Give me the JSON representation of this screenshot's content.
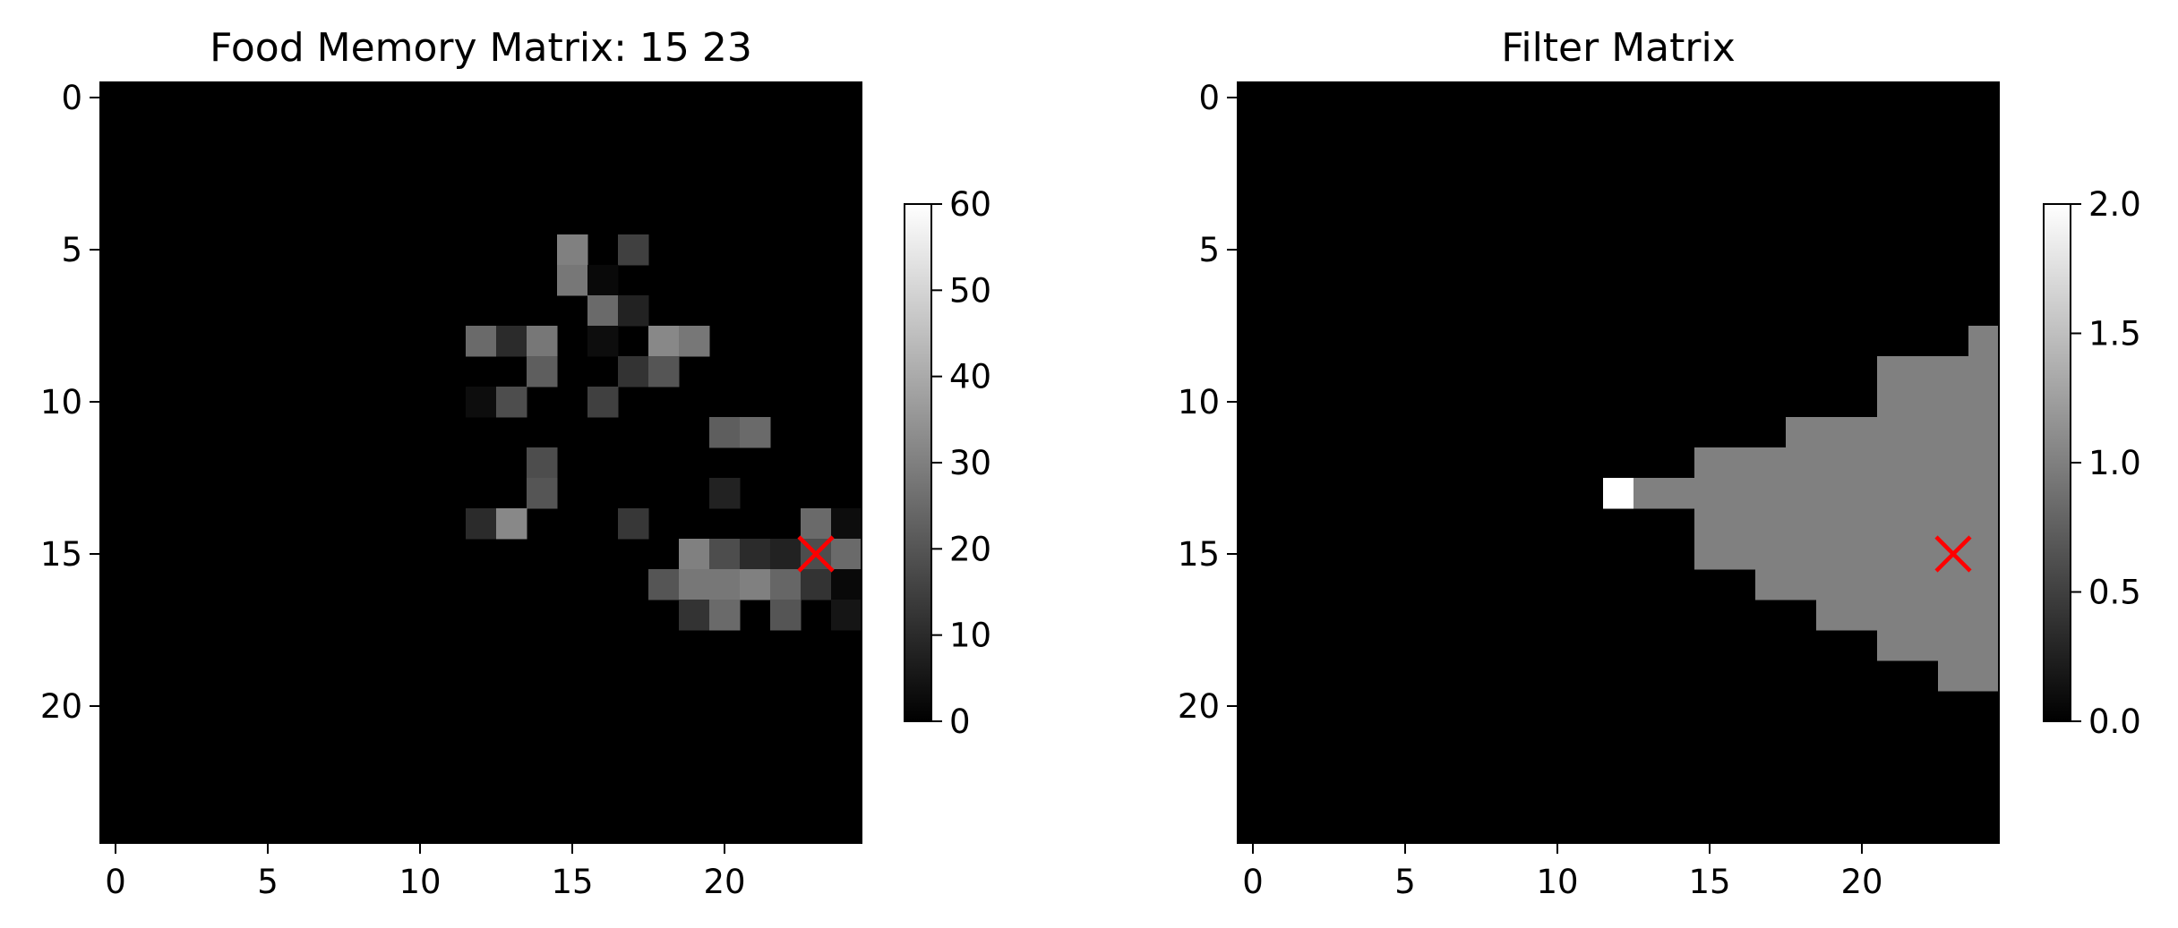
{
  "chart_data": [
    {
      "type": "heatmap",
      "title": "Food Memory Matrix: 15 23",
      "xlabel": "",
      "ylabel": "",
      "colormap": "gray",
      "shape": [
        25,
        25
      ],
      "xlim": [
        -0.5,
        24.5
      ],
      "ylim": [
        24.5,
        -0.5
      ],
      "xticks": [
        "0",
        "5",
        "10",
        "15",
        "20"
      ],
      "yticks": [
        "0",
        "5",
        "10",
        "15",
        "20"
      ],
      "colorbar": {
        "min": 0,
        "max": 60,
        "ticks": [
          "0",
          "10",
          "20",
          "30",
          "40",
          "50",
          "60"
        ]
      },
      "marker": {
        "row": 15,
        "col": 23,
        "symbol": "x",
        "color": "#ff0000"
      },
      "nonzero_cells": [
        {
          "row": 5,
          "col": 15,
          "value": 30
        },
        {
          "row": 5,
          "col": 17,
          "value": 15
        },
        {
          "row": 6,
          "col": 15,
          "value": 28
        },
        {
          "row": 6,
          "col": 16,
          "value": 2
        },
        {
          "row": 7,
          "col": 16,
          "value": 25
        },
        {
          "row": 7,
          "col": 17,
          "value": 8
        },
        {
          "row": 8,
          "col": 12,
          "value": 25
        },
        {
          "row": 8,
          "col": 13,
          "value": 10
        },
        {
          "row": 8,
          "col": 14,
          "value": 28
        },
        {
          "row": 8,
          "col": 16,
          "value": 3
        },
        {
          "row": 8,
          "col": 18,
          "value": 32
        },
        {
          "row": 8,
          "col": 19,
          "value": 28
        },
        {
          "row": 9,
          "col": 14,
          "value": 22
        },
        {
          "row": 9,
          "col": 17,
          "value": 12
        },
        {
          "row": 9,
          "col": 18,
          "value": 20
        },
        {
          "row": 10,
          "col": 12,
          "value": 3
        },
        {
          "row": 10,
          "col": 13,
          "value": 18
        },
        {
          "row": 10,
          "col": 16,
          "value": 15
        },
        {
          "row": 11,
          "col": 20,
          "value": 22
        },
        {
          "row": 11,
          "col": 21,
          "value": 25
        },
        {
          "row": 12,
          "col": 14,
          "value": 18
        },
        {
          "row": 13,
          "col": 14,
          "value": 20
        },
        {
          "row": 13,
          "col": 20,
          "value": 8
        },
        {
          "row": 14,
          "col": 12,
          "value": 10
        },
        {
          "row": 14,
          "col": 13,
          "value": 32
        },
        {
          "row": 14,
          "col": 17,
          "value": 13
        },
        {
          "row": 14,
          "col": 23,
          "value": 25
        },
        {
          "row": 14,
          "col": 24,
          "value": 3
        },
        {
          "row": 15,
          "col": 19,
          "value": 30
        },
        {
          "row": 15,
          "col": 20,
          "value": 18
        },
        {
          "row": 15,
          "col": 21,
          "value": 10
        },
        {
          "row": 15,
          "col": 22,
          "value": 8
        },
        {
          "row": 15,
          "col": 23,
          "value": 18
        },
        {
          "row": 15,
          "col": 24,
          "value": 25
        },
        {
          "row": 16,
          "col": 18,
          "value": 20
        },
        {
          "row": 16,
          "col": 19,
          "value": 28
        },
        {
          "row": 16,
          "col": 20,
          "value": 28
        },
        {
          "row": 16,
          "col": 21,
          "value": 30
        },
        {
          "row": 16,
          "col": 22,
          "value": 24
        },
        {
          "row": 16,
          "col": 23,
          "value": 12
        },
        {
          "row": 16,
          "col": 24,
          "value": 2
        },
        {
          "row": 17,
          "col": 19,
          "value": 12
        },
        {
          "row": 17,
          "col": 20,
          "value": 25
        },
        {
          "row": 17,
          "col": 22,
          "value": 20
        },
        {
          "row": 17,
          "col": 24,
          "value": 5
        }
      ]
    },
    {
      "type": "heatmap",
      "title": "Filter Matrix",
      "xlabel": "",
      "ylabel": "",
      "colormap": "gray",
      "shape": [
        25,
        25
      ],
      "xlim": [
        -0.5,
        24.5
      ],
      "ylim": [
        24.5,
        -0.5
      ],
      "xticks": [
        "0",
        "5",
        "10",
        "15",
        "20"
      ],
      "yticks": [
        "0",
        "5",
        "10",
        "15",
        "20"
      ],
      "colorbar": {
        "min": 0,
        "max": 2,
        "ticks": [
          "0.0",
          "0.5",
          "1.0",
          "1.5",
          "2.0"
        ]
      },
      "marker": {
        "row": 15,
        "col": 23,
        "symbol": "x",
        "color": "#ff0000"
      },
      "row_runs": [
        {
          "row": 8,
          "start": 24,
          "end": 24,
          "value": 1
        },
        {
          "row": 9,
          "start": 21,
          "end": 24,
          "value": 1
        },
        {
          "row": 10,
          "start": 21,
          "end": 24,
          "value": 1
        },
        {
          "row": 11,
          "start": 18,
          "end": 24,
          "value": 1
        },
        {
          "row": 12,
          "start": 15,
          "end": 24,
          "value": 1
        },
        {
          "row": 13,
          "start": 12,
          "end": 12,
          "value": 2
        },
        {
          "row": 13,
          "start": 13,
          "end": 24,
          "value": 1
        },
        {
          "row": 14,
          "start": 15,
          "end": 24,
          "value": 1
        },
        {
          "row": 15,
          "start": 15,
          "end": 24,
          "value": 1
        },
        {
          "row": 16,
          "start": 17,
          "end": 24,
          "value": 1
        },
        {
          "row": 17,
          "start": 19,
          "end": 24,
          "value": 1
        },
        {
          "row": 18,
          "start": 21,
          "end": 24,
          "value": 1
        },
        {
          "row": 19,
          "start": 23,
          "end": 24,
          "value": 1
        }
      ]
    }
  ]
}
